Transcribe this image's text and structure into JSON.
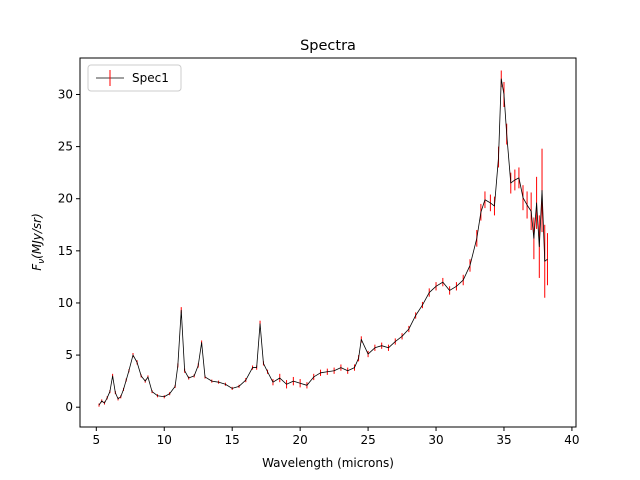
{
  "chart_data": {
    "type": "line",
    "title": "Spectra",
    "xlabel": "Wavelength (microns)",
    "ylabel": {
      "main": "F",
      "subscript": "ν",
      "rest": "(MJy/sr)"
    },
    "xlim": [
      3.8,
      40.3
    ],
    "ylim": [
      -1.9,
      33.5
    ],
    "xticks": [
      5,
      10,
      15,
      20,
      25,
      30,
      35,
      40
    ],
    "yticks": [
      0,
      5,
      10,
      15,
      20,
      25,
      30
    ],
    "grid": false,
    "legend": {
      "placement": "top-left",
      "entries": [
        "Spec1"
      ]
    },
    "series": [
      {
        "name": "Spec1",
        "line_color": "#000000",
        "errorbar_color": "#ff0000",
        "x": [
          5.2,
          5.4,
          5.6,
          5.8,
          6.0,
          6.2,
          6.4,
          6.6,
          6.8,
          7.0,
          7.2,
          7.4,
          7.7,
          8.0,
          8.3,
          8.6,
          8.8,
          9.1,
          9.5,
          10.0,
          10.4,
          10.8,
          11.0,
          11.25,
          11.5,
          11.8,
          12.2,
          12.5,
          12.75,
          13.0,
          13.5,
          14.0,
          14.5,
          15.0,
          15.5,
          16.0,
          16.5,
          16.8,
          17.05,
          17.3,
          17.6,
          18.0,
          18.5,
          19.0,
          19.5,
          20.0,
          20.5,
          21.0,
          21.5,
          22.0,
          22.5,
          23.0,
          23.5,
          24.0,
          24.3,
          24.5,
          25.0,
          25.5,
          26.0,
          26.5,
          27.0,
          27.5,
          28.0,
          28.5,
          29.0,
          29.5,
          30.0,
          30.5,
          31.0,
          31.5,
          32.0,
          32.5,
          33.0,
          33.3,
          33.6,
          34.0,
          34.3,
          34.6,
          34.8,
          35.0,
          35.2,
          35.5,
          35.8,
          36.1,
          36.4,
          36.7,
          37.0,
          37.2,
          37.4,
          37.6,
          37.8,
          38.0,
          38.2
        ],
        "y": [
          0.2,
          0.6,
          0.4,
          0.9,
          1.5,
          3.0,
          1.4,
          0.8,
          1.0,
          1.7,
          2.6,
          3.5,
          5.0,
          4.3,
          3.0,
          2.5,
          2.9,
          1.5,
          1.1,
          1.0,
          1.3,
          2.0,
          4.0,
          9.3,
          3.5,
          2.8,
          3.0,
          4.0,
          6.2,
          2.9,
          2.5,
          2.4,
          2.2,
          1.8,
          2.0,
          2.6,
          3.8,
          3.8,
          8.0,
          4.2,
          3.4,
          2.4,
          2.8,
          2.2,
          2.5,
          2.3,
          2.1,
          2.9,
          3.3,
          3.4,
          3.5,
          3.8,
          3.5,
          3.8,
          4.7,
          6.5,
          5.1,
          5.7,
          5.9,
          5.7,
          6.3,
          6.8,
          7.5,
          8.8,
          9.8,
          11.0,
          11.6,
          12.0,
          11.2,
          11.6,
          12.2,
          13.6,
          16.2,
          18.7,
          19.9,
          19.6,
          19.3,
          24.0,
          31.5,
          30.0,
          26.2,
          21.5,
          21.8,
          22.0,
          20.1,
          19.4,
          18.8,
          16.2,
          19.6,
          15.4,
          20.8,
          14.0,
          14.2
        ],
        "yerr": [
          0.15,
          0.15,
          0.15,
          0.15,
          0.15,
          0.2,
          0.15,
          0.15,
          0.15,
          0.15,
          0.15,
          0.15,
          0.2,
          0.2,
          0.15,
          0.15,
          0.15,
          0.15,
          0.15,
          0.15,
          0.15,
          0.15,
          0.2,
          0.3,
          0.2,
          0.15,
          0.15,
          0.2,
          0.2,
          0.15,
          0.15,
          0.15,
          0.15,
          0.15,
          0.15,
          0.2,
          0.2,
          0.2,
          0.3,
          0.2,
          0.2,
          0.3,
          0.4,
          0.4,
          0.4,
          0.4,
          0.3,
          0.3,
          0.3,
          0.3,
          0.3,
          0.3,
          0.3,
          0.3,
          0.3,
          0.3,
          0.3,
          0.3,
          0.3,
          0.3,
          0.3,
          0.3,
          0.3,
          0.3,
          0.3,
          0.4,
          0.4,
          0.4,
          0.4,
          0.4,
          0.5,
          0.6,
          0.8,
          0.8,
          0.8,
          0.8,
          0.9,
          1.0,
          0.8,
          1.2,
          1.0,
          1.0,
          1.0,
          1.0,
          1.2,
          1.3,
          1.8,
          2.0,
          2.5,
          3.0,
          4.0,
          3.5,
          2.5
        ]
      }
    ]
  }
}
